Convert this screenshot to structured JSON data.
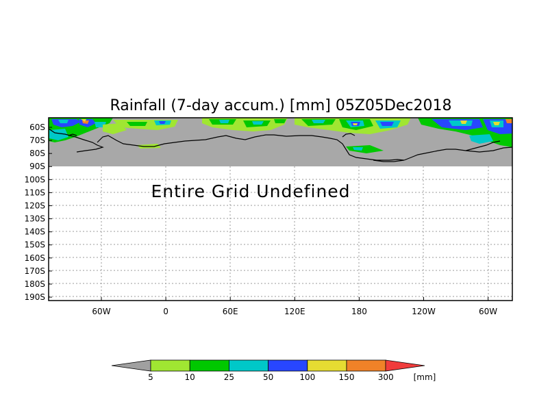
{
  "title": "Rainfall (7-day accum.) [mm] 05Z05Dec2018",
  "notice": "Entire Grid Undefined",
  "lat_ticks": [
    "60S",
    "70S",
    "80S",
    "90S",
    "100S",
    "110S",
    "120S",
    "130S",
    "140S",
    "150S",
    "160S",
    "170S",
    "180S",
    "190S"
  ],
  "lon_ticks": [
    "60W",
    "0",
    "60E",
    "120E",
    "180",
    "120W",
    "60W"
  ],
  "colorbar": {
    "unit": "[mm]",
    "labels": [
      "5",
      "10",
      "25",
      "50",
      "100",
      "150",
      "300"
    ],
    "colors": [
      "#a0e632",
      "#00c800",
      "#00c8c8",
      "#2846ff",
      "#e6dc32",
      "#f08228",
      "#f03c3c"
    ],
    "under_color": "#a0a0a0"
  },
  "colors": {
    "undefined_fill": "#a8a8a8",
    "coastline": "#000000",
    "grid": "#9a9a9a"
  }
}
